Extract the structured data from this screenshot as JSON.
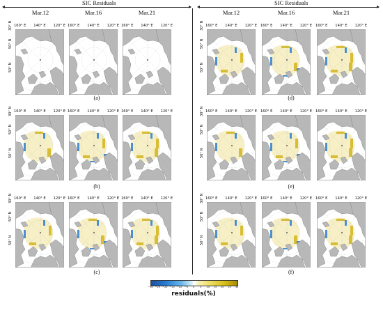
{
  "header": {
    "left_title": "SIC Residuals",
    "right_title": "SIC Residuals"
  },
  "dates": [
    "Mar.12",
    "Mar.16",
    "Mar.21"
  ],
  "panel_labels": [
    "(a)",
    "(b)",
    "(c)",
    "(d)",
    "(e)",
    "(f)"
  ],
  "lon_labels": [
    "160° E",
    "140° E",
    "120° E"
  ],
  "lat_labels": [
    "30° N",
    "50° N",
    "50° N"
  ],
  "colorbar": {
    "ticks": [
      "−30",
      "−25",
      "−20",
      "−15",
      "−10",
      "−5",
      "0",
      "5",
      "10",
      "15",
      "20",
      "25",
      "30"
    ],
    "label": "residuals(%)"
  },
  "colors": {
    "land": "#b8b8b8",
    "ocean": "#ffffff",
    "ice_residual": "#f7efc6",
    "positive": "#d4b51a",
    "negative": "#2a7fd4"
  }
}
